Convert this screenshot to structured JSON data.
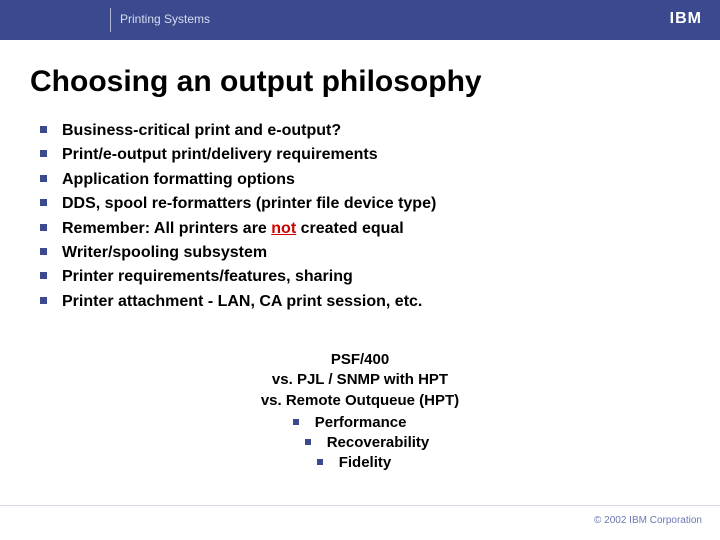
{
  "header": {
    "subtitle": "Printing Systems",
    "logo_text": "IBM",
    "bg_color": "#3b4a8f",
    "text_color": "#d8dcef",
    "logo_color": "#ffffff"
  },
  "title": "Choosing an output philosophy",
  "main_list": {
    "bullet_color": "#3b4a8f",
    "text_color": "#000000",
    "font_size_pt": 12,
    "items": [
      "Business-critical print and e-output?",
      "Print/e-output print/delivery requirements",
      "Application formatting options",
      "DDS, spool re-formatters (printer file device type)",
      "Remember: All printers are ",
      "Writer/spooling subsystem",
      "Printer requirements/features, sharing",
      "Printer attachment - LAN, CA print session, etc."
    ],
    "item4_emphasis": "not",
    "item4_suffix": " created equal",
    "emphasis_color": "#d00000"
  },
  "sub_block": {
    "lines": [
      "PSF/400",
      "vs. PJL / SNMP with HPT",
      "vs. Remote Outqueue (HPT)"
    ],
    "bullets": [
      "Performance",
      "Recoverability",
      "Fidelity"
    ],
    "bullet_color": "#3b4a8f"
  },
  "footer": {
    "text": "© 2002 IBM Corporation",
    "color": "#6b77b2"
  }
}
